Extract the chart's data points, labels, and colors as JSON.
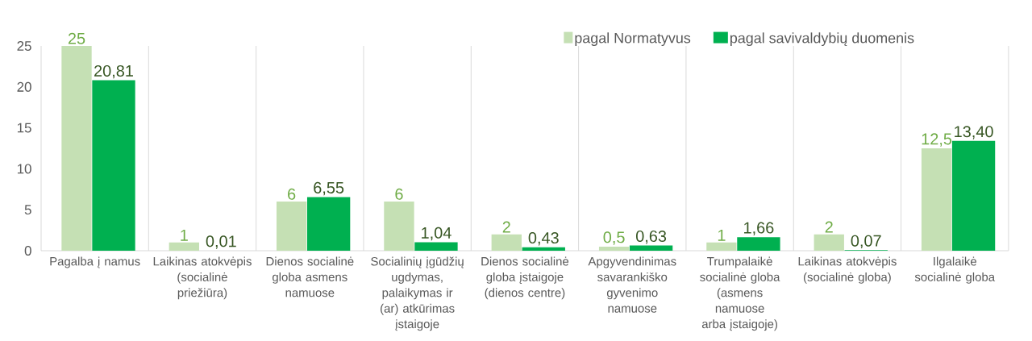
{
  "chart_data": {
    "type": "bar",
    "categories": [
      "Pagalba į namus",
      "Laikinas atokvėpis (socialinė priežiūra)",
      "Dienos socialinė globa asmens namuose",
      "Socialinių įgūdžių ugdymas, palaikymas ir (ar) atkūrimas įstaigoje",
      "Dienos socialinė globa įstaigoje (dienos centre)",
      "Apgyvendinimas savarankiško gyvenimo namuose",
      "Trumpalaikė socialinė globa (asmens namuose arba įstaigoje)",
      "Laikinas atokvėpis (socialinė globa)",
      "Ilgalaikė socialinė globa"
    ],
    "series": [
      {
        "name": "pagal Normatyvus",
        "color": "#c5e0b4",
        "values": [
          25,
          1,
          6,
          6,
          2,
          0.5,
          1,
          2,
          12.5
        ],
        "value_labels": [
          "25",
          "1",
          "6",
          "6",
          "2",
          "0,5",
          "1",
          "2",
          "12,5"
        ]
      },
      {
        "name": "pagal savivaldybių duomenis",
        "color": "#00b050",
        "values": [
          20.81,
          0.01,
          6.55,
          1.04,
          0.43,
          0.63,
          1.66,
          0.07,
          13.4
        ],
        "value_labels": [
          "20,81",
          "0,01",
          "6,55",
          "1,04",
          "0,43",
          "0,63",
          "1,66",
          "0,07",
          "13,40"
        ]
      }
    ],
    "ylim": [
      0,
      25
    ],
    "yticks": [
      0,
      5,
      10,
      15,
      20,
      25
    ],
    "grid": "x",
    "legend": "top right"
  }
}
